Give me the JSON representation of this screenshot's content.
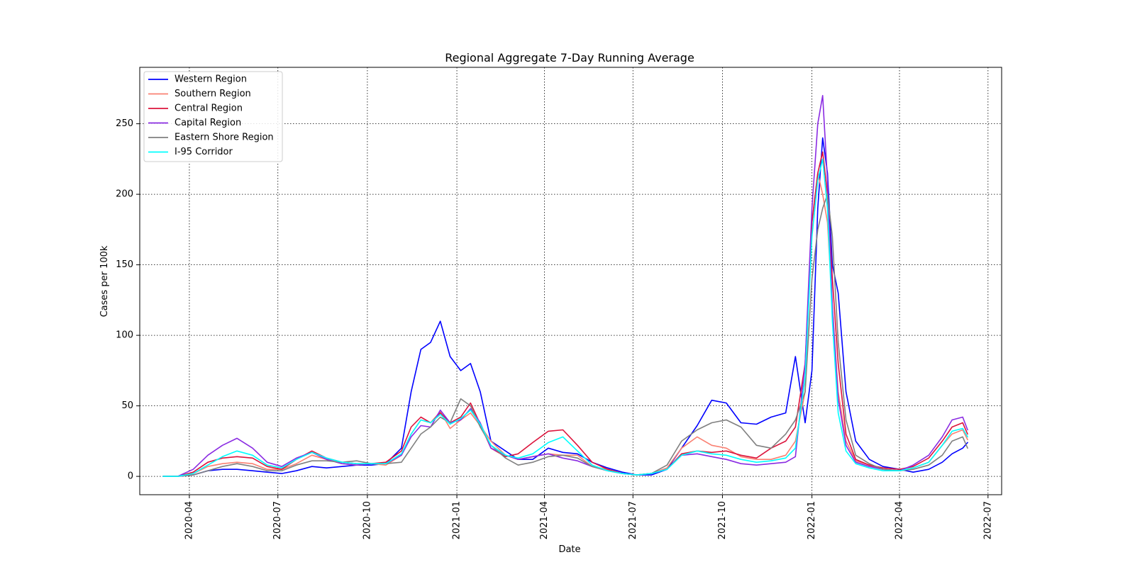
{
  "chart_data": {
    "type": "line",
    "title": "Regional Aggregate 7-Day Running Average",
    "xlabel": "Date",
    "ylabel": "Cases per 100k",
    "xlim": [
      "2020-02-10",
      "2022-07-15"
    ],
    "ylim": [
      -13,
      290
    ],
    "x_ticks": [
      "2020-04-01",
      "2020-07-01",
      "2020-10-01",
      "2021-01-01",
      "2021-04-01",
      "2021-07-01",
      "2021-10-01",
      "2022-01-01",
      "2022-04-01",
      "2022-07-01"
    ],
    "x_tick_labels": [
      "2020-04",
      "2020-07",
      "2020-10",
      "2021-01",
      "2021-04",
      "2021-07",
      "2021-10",
      "2022-01",
      "2022-04",
      "2022-07"
    ],
    "y_ticks": [
      0,
      50,
      100,
      150,
      200,
      250
    ],
    "y_tick_labels": [
      "0",
      "50",
      "100",
      "150",
      "200",
      "250"
    ],
    "grid": true,
    "legend_position": "upper-left",
    "x": [
      "2020-03-05",
      "2020-03-20",
      "2020-04-05",
      "2020-04-20",
      "2020-05-05",
      "2020-05-20",
      "2020-06-05",
      "2020-06-20",
      "2020-07-05",
      "2020-07-20",
      "2020-08-05",
      "2020-08-20",
      "2020-09-05",
      "2020-09-20",
      "2020-10-05",
      "2020-10-20",
      "2020-11-05",
      "2020-11-15",
      "2020-11-25",
      "2020-12-05",
      "2020-12-15",
      "2020-12-25",
      "2021-01-05",
      "2021-01-15",
      "2021-01-25",
      "2021-02-05",
      "2021-02-20",
      "2021-03-05",
      "2021-03-20",
      "2021-04-05",
      "2021-04-20",
      "2021-05-05",
      "2021-05-20",
      "2021-06-05",
      "2021-06-20",
      "2021-07-05",
      "2021-07-20",
      "2021-08-05",
      "2021-08-20",
      "2021-09-05",
      "2021-09-20",
      "2021-10-05",
      "2021-10-20",
      "2021-11-05",
      "2021-11-20",
      "2021-12-05",
      "2021-12-15",
      "2021-12-25",
      "2022-01-01",
      "2022-01-07",
      "2022-01-12",
      "2022-01-17",
      "2022-01-22",
      "2022-01-28",
      "2022-02-05",
      "2022-02-15",
      "2022-03-01",
      "2022-03-15",
      "2022-04-01",
      "2022-04-15",
      "2022-05-01",
      "2022-05-15",
      "2022-05-25",
      "2022-06-05",
      "2022-06-10"
    ],
    "series": [
      {
        "name": "Western Region",
        "color": "#0000ff",
        "values": [
          0,
          0,
          1,
          4,
          5,
          5,
          4,
          3,
          2,
          4,
          7,
          6,
          7,
          8,
          8,
          9,
          20,
          60,
          90,
          95,
          110,
          85,
          75,
          80,
          60,
          25,
          18,
          12,
          12,
          20,
          17,
          16,
          10,
          6,
          3,
          1,
          1,
          5,
          20,
          36,
          54,
          52,
          38,
          37,
          42,
          45,
          85,
          38,
          75,
          190,
          240,
          215,
          150,
          130,
          60,
          25,
          12,
          7,
          5,
          3,
          5,
          10,
          16,
          20,
          24
        ]
      },
      {
        "name": "Southern Region",
        "color": "#fa8072",
        "values": [
          0,
          0,
          2,
          7,
          9,
          10,
          9,
          5,
          5,
          9,
          15,
          12,
          9,
          8,
          9,
          8,
          15,
          30,
          40,
          38,
          46,
          34,
          40,
          45,
          36,
          25,
          15,
          12,
          14,
          16,
          15,
          15,
          7,
          5,
          2,
          1,
          2,
          6,
          20,
          28,
          22,
          20,
          14,
          12,
          12,
          15,
          25,
          60,
          180,
          215,
          200,
          180,
          120,
          60,
          25,
          11,
          8,
          5,
          4,
          6,
          10,
          22,
          30,
          33,
          26
        ]
      },
      {
        "name": "Central Region",
        "color": "#dc143c",
        "values": [
          0,
          0,
          3,
          10,
          13,
          14,
          13,
          7,
          5,
          12,
          18,
          13,
          10,
          9,
          9,
          10,
          18,
          35,
          42,
          38,
          45,
          38,
          42,
          52,
          37,
          20,
          14,
          16,
          24,
          32,
          33,
          22,
          10,
          5,
          2,
          1,
          2,
          5,
          16,
          18,
          17,
          18,
          15,
          13,
          20,
          25,
          35,
          80,
          180,
          215,
          230,
          200,
          140,
          80,
          30,
          12,
          8,
          6,
          5,
          7,
          13,
          25,
          35,
          38,
          30
        ]
      },
      {
        "name": "Capital Region",
        "color": "#8a2be2",
        "values": [
          0,
          0,
          5,
          15,
          22,
          27,
          20,
          10,
          7,
          13,
          17,
          12,
          9,
          8,
          9,
          9,
          15,
          28,
          36,
          35,
          47,
          38,
          40,
          48,
          38,
          20,
          15,
          12,
          14,
          16,
          13,
          11,
          7,
          4,
          2,
          1,
          2,
          5,
          15,
          16,
          14,
          12,
          9,
          8,
          9,
          10,
          14,
          80,
          190,
          250,
          270,
          210,
          120,
          55,
          22,
          10,
          7,
          5,
          4,
          8,
          15,
          28,
          40,
          42,
          33
        ]
      },
      {
        "name": "Eastern Shore Region",
        "color": "#808080",
        "values": [
          0,
          0,
          1,
          4,
          7,
          9,
          7,
          4,
          4,
          8,
          11,
          11,
          10,
          11,
          9,
          9,
          10,
          20,
          30,
          35,
          42,
          38,
          55,
          50,
          35,
          22,
          13,
          8,
          10,
          14,
          15,
          13,
          7,
          4,
          2,
          1,
          2,
          8,
          25,
          33,
          38,
          40,
          35,
          22,
          20,
          30,
          40,
          60,
          140,
          175,
          190,
          200,
          170,
          95,
          40,
          15,
          9,
          5,
          4,
          5,
          8,
          15,
          25,
          28,
          20
        ]
      },
      {
        "name": "I-95 Corridor",
        "color": "#00ffff",
        "values": [
          0,
          0,
          2,
          8,
          14,
          18,
          15,
          8,
          6,
          12,
          17,
          13,
          10,
          9,
          9,
          9,
          16,
          30,
          40,
          38,
          44,
          37,
          41,
          47,
          37,
          22,
          15,
          13,
          16,
          24,
          28,
          18,
          8,
          4,
          2,
          1,
          2,
          5,
          15,
          18,
          16,
          15,
          12,
          10,
          11,
          13,
          20,
          70,
          170,
          210,
          225,
          190,
          110,
          45,
          18,
          9,
          6,
          4,
          4,
          6,
          10,
          22,
          32,
          34,
          28
        ]
      }
    ]
  }
}
